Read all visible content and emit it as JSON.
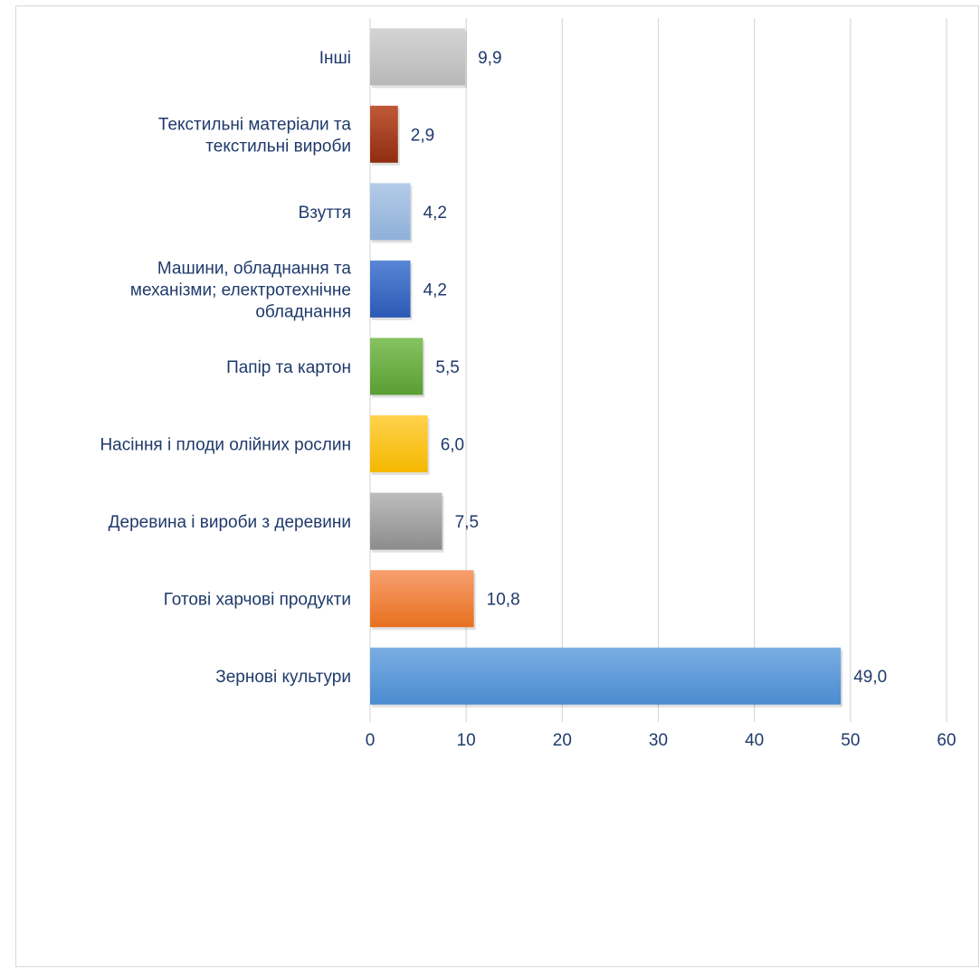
{
  "chart_data": {
    "type": "bar",
    "orientation": "horizontal",
    "categories": [
      "Інші",
      "Текстильні матеріали та текстильні вироби",
      "Взуття",
      "Машини, обладнання та механізми; електротехнічне обладнання",
      "Папір та картон",
      "Насіння і плоди олійних рослин",
      "Деревина і вироби з деревини",
      "Готові харчові продукти",
      "Зернові культури"
    ],
    "category_lines": [
      [
        "Інші"
      ],
      [
        "Текстильні матеріали та",
        "текстильні вироби"
      ],
      [
        "Взуття"
      ],
      [
        "Машини, обладнання та",
        "механізми; електротехнічне",
        "обладнання"
      ],
      [
        "Папір та картон"
      ],
      [
        "Насіння і плоди олійних рослин"
      ],
      [
        "Деревина і вироби з деревини"
      ],
      [
        "Готові харчові продукти"
      ],
      [
        "Зернові культури"
      ]
    ],
    "values": [
      9.9,
      2.9,
      4.2,
      4.2,
      5.5,
      6.0,
      7.5,
      10.8,
      49.0
    ],
    "value_labels": [
      "9,9",
      "2,9",
      "4,2",
      "4,2",
      "5,5",
      "6,0",
      "7,5",
      "10,8",
      "49,0"
    ],
    "colors": [
      [
        "#d4d4d4",
        "#b8b8b8"
      ],
      [
        "#c0593a",
        "#8f2e0f"
      ],
      [
        "#b4cbe8",
        "#8fb0d9"
      ],
      [
        "#5a86d6",
        "#2c59b5"
      ],
      [
        "#86c261",
        "#5a9e34"
      ],
      [
        "#ffd24d",
        "#f5b800"
      ],
      [
        "#bdbdbd",
        "#8c8c8c"
      ],
      [
        "#f7a070",
        "#e8701f"
      ],
      [
        "#7aaee2",
        "#4b8bd0"
      ]
    ],
    "xlim": [
      0,
      60
    ],
    "xticks": [
      0,
      10,
      20,
      30,
      40,
      50,
      60
    ],
    "grid": true,
    "title": "",
    "xlabel": "",
    "ylabel": ""
  }
}
